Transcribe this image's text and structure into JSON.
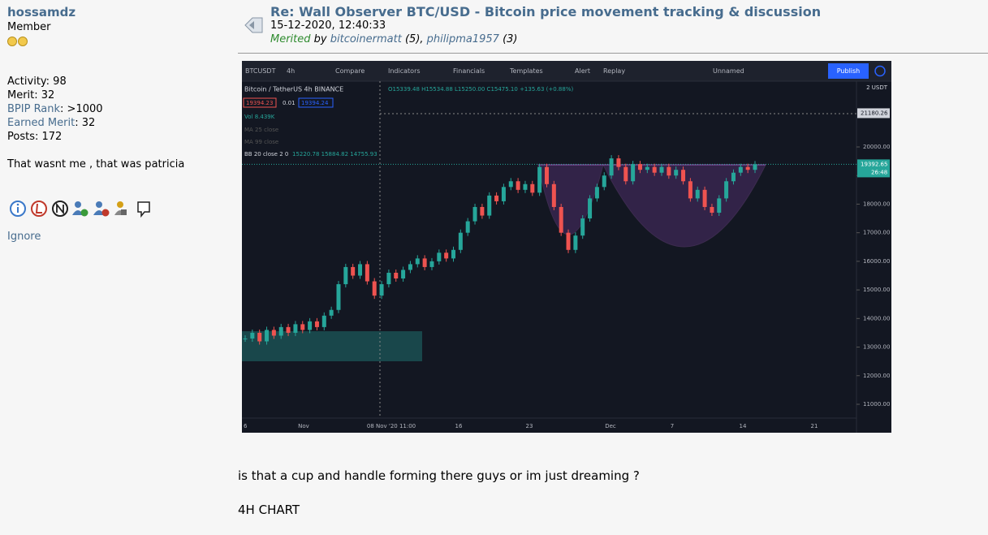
{
  "profile": {
    "username": "hossamdz",
    "rank": "Member",
    "activity": "Activity: 98",
    "merit": "Merit: 32",
    "bpip_label": "BPIP Rank",
    "bpip_value": ": >1000",
    "earned_label": "Earned Merit",
    "earned_value": ": 32",
    "posts": "Posts: 172",
    "signature": "That wasnt me , that was patricia",
    "ignore": "Ignore"
  },
  "post": {
    "title": "Re: Wall Observer BTC/USD - Bitcoin price movement tracking & discussion",
    "date": "15-12-2020, 12:40:33",
    "merited": "Merited",
    "by": " by ",
    "merit_user_1": "bitcoinermatt",
    "merit_count_1": " (5), ",
    "merit_user_2": "philipma1957",
    "merit_count_2": " (3)",
    "body": [
      "is that a cup and handle forming there guys or im just dreaming ?",
      "4H CHART"
    ]
  },
  "chart_image": {
    "toolbar": [
      "BTCUSDT",
      "4h",
      "Compare",
      "Indicators",
      "Financials",
      "Templates",
      "Alert",
      "Replay",
      "Unnamed"
    ],
    "publish": "Publish",
    "symbol": "Bitcoin / TetherUS  4h  BINANCE",
    "ohlc": "O15339.48 H15534.88 L15250.00 C15475.10 +135.63 (+0.88%)",
    "sell": "19394.23",
    "spread": "0.01",
    "buy": "19394.24",
    "volume": "Vol 8.439K",
    "ma25": "MA 25 close",
    "ma99": "MA 99 close",
    "bb": "BB 20 close 2 0",
    "bb_values": "15220.78  15884.82  14755.93",
    "currency": "2 USDT",
    "ylim": [
      10500,
      22300
    ],
    "yticks": [
      {
        "value": 11000,
        "label": "11000.00"
      },
      {
        "value": 12000,
        "label": "12000.00"
      },
      {
        "value": 13000,
        "label": "13000.00"
      },
      {
        "value": 14000,
        "label": "14000.00"
      },
      {
        "value": 15000,
        "label": "15000.00"
      },
      {
        "value": 16000,
        "label": "16000.00"
      },
      {
        "value": 17000,
        "label": "17000.00"
      },
      {
        "value": 18000,
        "label": "18000.00"
      },
      {
        "value": 19000,
        "label": "19000.00"
      },
      {
        "value": 20000,
        "label": "20000.00"
      }
    ],
    "high_marker": {
      "value": 21180.26,
      "label": "21180.26"
    },
    "last_price": {
      "value": 19392.65,
      "label": "19392.65"
    },
    "countdown": "26:48",
    "xlabels": [
      "6",
      "Nov",
      "08 Nov '20  11:00",
      "16",
      "23",
      "Dec",
      "7",
      "14",
      "21"
    ],
    "closes": [
      13300,
      13500,
      13200,
      13600,
      13400,
      13700,
      13500,
      13800,
      13600,
      13900,
      13700,
      14100,
      14300,
      15200,
      15800,
      15500,
      15900,
      15300,
      14800,
      15200,
      15600,
      15400,
      15700,
      15900,
      16100,
      15800,
      16000,
      16300,
      16100,
      16400,
      17000,
      17400,
      17900,
      17600,
      18300,
      18100,
      18600,
      18800,
      18500,
      18700,
      18400,
      19300,
      18700,
      17900,
      17000,
      16400,
      16900,
      17500,
      18200,
      18600,
      19000,
      19600,
      19300,
      18800,
      19400,
      19200,
      19300,
      19100,
      19300,
      19000,
      19200,
      18800,
      18200,
      18500,
      17900,
      17700,
      18200,
      18800,
      19100,
      19300,
      19200,
      19394
    ]
  }
}
